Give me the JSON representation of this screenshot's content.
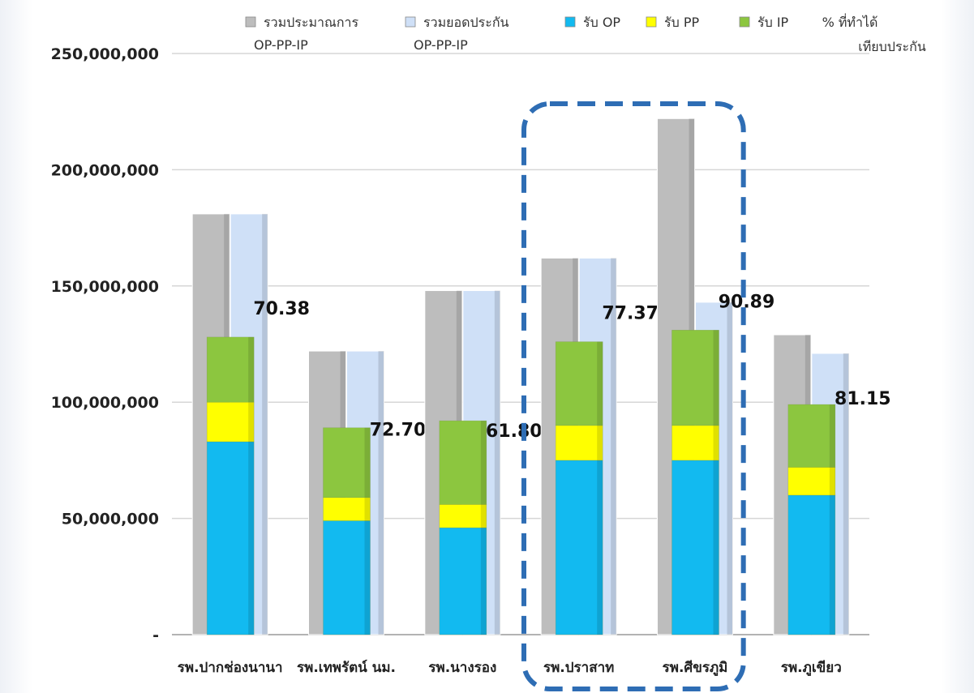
{
  "chart_data": {
    "type": "bar",
    "categories": [
      "รพ.ปากช่องนานา",
      "รพ.เทพรัตน์ นม.",
      "รพ.นางรอง",
      "รพ.ปราสาท",
      "รพ.ศีขรภูมิ",
      "รพ.ภูเขียว"
    ],
    "y_tick_labels": [
      "-",
      "50,000,000",
      "100,000,000",
      "150,000,000",
      "200,000,000",
      "250,000,000"
    ],
    "ylim": [
      0,
      250000000
    ],
    "grid": true,
    "legend_position": "top",
    "series": [
      {
        "name": "รวมประมาณการ OP-PP-IP",
        "name_line1": "รวมประมาณการ",
        "name_line2": "OP-PP-IP",
        "color": "#bdbdbd",
        "values": [
          181000000,
          122000000,
          148000000,
          162000000,
          222000000,
          129000000
        ]
      },
      {
        "name": "รวมยอดประกัน OP-PP-IP",
        "name_line1": "รวมยอดประกัน",
        "name_line2": "OP-PP-IP",
        "color": "#cfe0f7",
        "values": [
          181000000,
          122000000,
          148000000,
          162000000,
          143000000,
          121000000
        ]
      },
      {
        "name": "รับ OP",
        "color": "#12baf0",
        "values": [
          83000000,
          49000000,
          46000000,
          75000000,
          75000000,
          60000000
        ]
      },
      {
        "name": "รับ PP",
        "color": "#ffff00",
        "values": [
          17000000,
          10000000,
          10000000,
          15000000,
          15000000,
          12000000
        ]
      },
      {
        "name": "รับ IP",
        "color": "#8cc63f",
        "values": [
          28000000,
          30000000,
          36000000,
          36000000,
          41000000,
          27000000
        ]
      }
    ],
    "percent_series": {
      "name": "% ที่ทำได้ เทียบประกัน",
      "name_line1": "% ที่ทำได้",
      "name_line2": "เทียบประกัน",
      "values": [
        "70.38",
        "72.70",
        "61.80",
        "77.37",
        "90.89",
        "81.15"
      ]
    },
    "highlight": {
      "categories": [
        "รพ.ปราสาท",
        "รพ.ศีขรภูมิ"
      ],
      "color": "#2e6db4"
    }
  }
}
